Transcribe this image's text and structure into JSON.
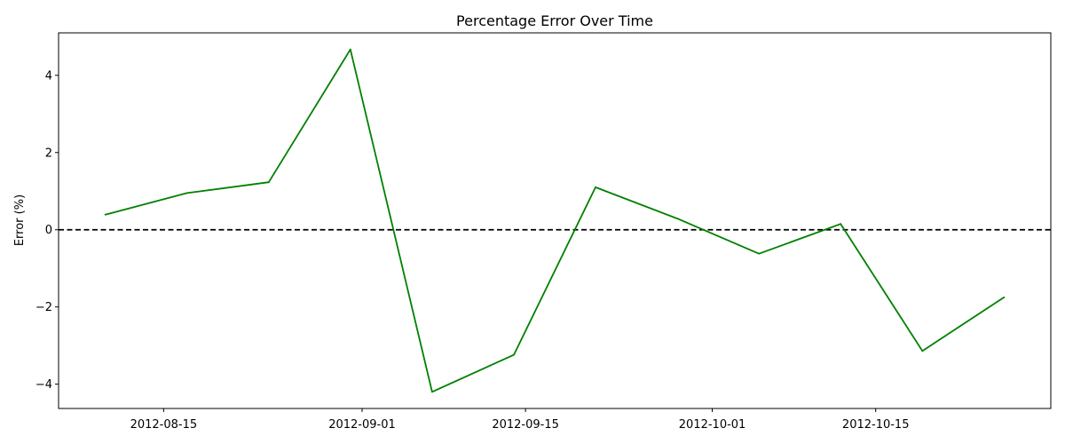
{
  "chart_data": {
    "type": "line",
    "title": "Percentage Error Over Time",
    "xlabel": "",
    "ylabel": "Error (%)",
    "x": [
      "2012-08-10",
      "2012-08-17",
      "2012-08-24",
      "2012-08-31",
      "2012-09-07",
      "2012-09-14",
      "2012-09-21",
      "2012-09-28",
      "2012-10-05",
      "2012-10-12",
      "2012-10-19",
      "2012-10-26"
    ],
    "series": [
      {
        "values": [
          0.39,
          0.95,
          1.23,
          4.67,
          -4.2,
          -3.24,
          1.1,
          0.29,
          -0.62,
          0.15,
          -3.14,
          -1.75
        ]
      }
    ],
    "xlim": [
      "2012-08-06",
      "2012-10-30"
    ],
    "ylim": [
      -4.63,
      5.1
    ],
    "x_ticks": [
      "2012-08-15",
      "2012-09-01",
      "2012-09-15",
      "2012-10-01",
      "2012-10-15"
    ],
    "y_ticks": [
      -4,
      -2,
      0,
      2,
      4
    ],
    "reference_line": {
      "y": 0,
      "style": "dashed",
      "color": "#000000"
    },
    "line_color": "#008000",
    "grid": false,
    "legend": "none"
  }
}
